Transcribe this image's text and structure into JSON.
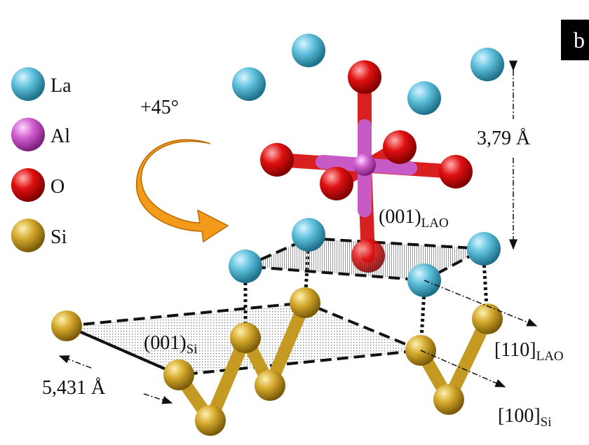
{
  "panel_label": "b",
  "legend": [
    {
      "label": "La"
    },
    {
      "label": "Al"
    },
    {
      "label": "O"
    },
    {
      "label": "Si"
    }
  ],
  "rotation": "+45°",
  "lattice_lao": "3,79 Å",
  "lattice_si": "5,431 Å",
  "plane_lao": {
    "main": "(001)",
    "sub": "LAO"
  },
  "plane_si": {
    "main": "(001)",
    "sub": "Si"
  },
  "direction_lao": {
    "main": "[110]",
    "sub": "LAO"
  },
  "direction_si": {
    "main": "[100]",
    "sub": "Si"
  }
}
